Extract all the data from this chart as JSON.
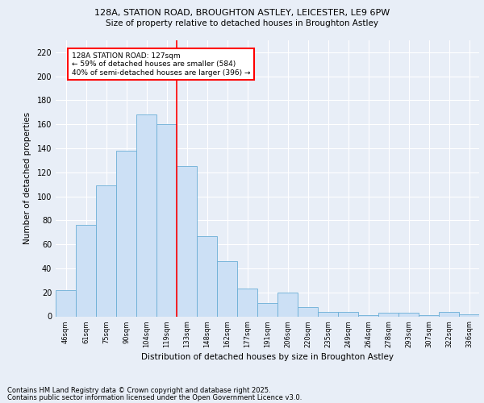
{
  "title_line1": "128A, STATION ROAD, BROUGHTON ASTLEY, LEICESTER, LE9 6PW",
  "title_line2": "Size of property relative to detached houses in Broughton Astley",
  "xlabel": "Distribution of detached houses by size in Broughton Astley",
  "ylabel": "Number of detached properties",
  "categories": [
    "46sqm",
    "61sqm",
    "75sqm",
    "90sqm",
    "104sqm",
    "119sqm",
    "133sqm",
    "148sqm",
    "162sqm",
    "177sqm",
    "191sqm",
    "206sqm",
    "220sqm",
    "235sqm",
    "249sqm",
    "264sqm",
    "278sqm",
    "293sqm",
    "307sqm",
    "322sqm",
    "336sqm"
  ],
  "values": [
    22,
    76,
    109,
    138,
    168,
    160,
    125,
    67,
    46,
    23,
    11,
    20,
    8,
    4,
    4,
    1,
    3,
    3,
    1,
    4,
    2
  ],
  "bar_color": "#cce0f5",
  "bar_edge_color": "#6aaed6",
  "vline_x_index": 5.5,
  "vline_color": "red",
  "annotation_text": "128A STATION ROAD: 127sqm\n← 59% of detached houses are smaller (584)\n40% of semi-detached houses are larger (396) →",
  "annotation_box_color": "white",
  "annotation_box_edge_color": "red",
  "ylim": [
    0,
    230
  ],
  "yticks": [
    0,
    20,
    40,
    60,
    80,
    100,
    120,
    140,
    160,
    180,
    200,
    220
  ],
  "bg_color": "#e8eef7",
  "grid_color": "white",
  "footer_line1": "Contains HM Land Registry data © Crown copyright and database right 2025.",
  "footer_line2": "Contains public sector information licensed under the Open Government Licence v3.0."
}
